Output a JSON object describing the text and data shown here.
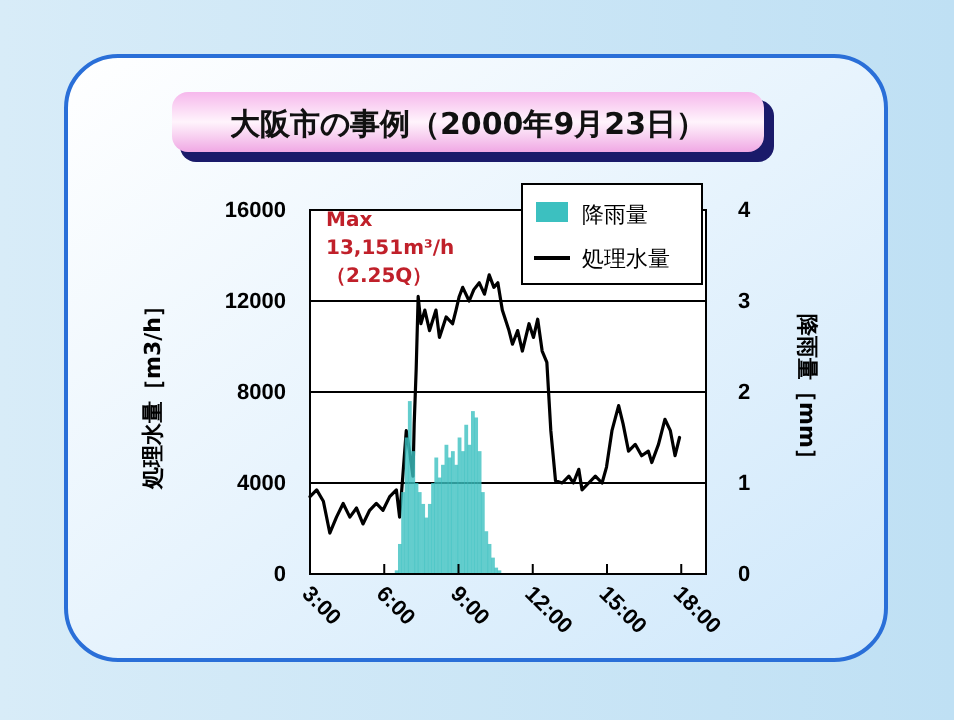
{
  "chart_data": {
    "type": "line",
    "title": "大阪市の事例（2000年9月23日）",
    "ylabel": "処理水量［m3/h］",
    "y2label": "降雨量［mm］",
    "annotations": [
      "Max 13,151m³/h（2.25Q）"
    ],
    "xlim": [
      3,
      19
    ],
    "xticks": [
      {
        "value": 3,
        "label": "3:00"
      },
      {
        "value": 6,
        "label": "6:00"
      },
      {
        "value": 9,
        "label": "9:00"
      },
      {
        "value": 12,
        "label": "12:00"
      },
      {
        "value": 15,
        "label": "15:00"
      },
      {
        "value": 18,
        "label": "18:00"
      }
    ],
    "ylim": [
      0,
      16000
    ],
    "yticks": [
      0,
      4000,
      8000,
      12000,
      16000
    ],
    "y2lim": [
      0,
      4
    ],
    "y2ticks": [
      0,
      1,
      2,
      3,
      4
    ],
    "grid": "y",
    "legend": "top right",
    "series": [
      {
        "name": "降雨量",
        "type": "bar",
        "axis": "y2",
        "color": "#3cc0c0",
        "x": [
          6.49,
          6.62,
          6.75,
          6.89,
          7.02,
          7.16,
          7.29,
          7.42,
          7.56,
          7.69,
          7.83,
          7.96,
          8.09,
          8.23,
          8.36,
          8.5,
          8.63,
          8.76,
          8.9,
          9.03,
          9.17,
          9.3,
          9.43,
          9.57,
          9.7,
          9.84,
          9.97,
          10.11,
          10.24,
          10.38,
          10.51,
          10.64
        ],
        "values": [
          0.04,
          0.33,
          0.9,
          1.5,
          1.9,
          1.35,
          1.0,
          0.9,
          0.77,
          0.62,
          0.77,
          1.0,
          1.28,
          1.06,
          1.2,
          1.42,
          1.28,
          1.35,
          1.2,
          1.5,
          1.35,
          1.64,
          1.42,
          1.79,
          1.72,
          1.35,
          0.9,
          0.47,
          0.33,
          0.18,
          0.07,
          0.04
        ]
      },
      {
        "name": "処理水量",
        "color": "#000000",
        "x": [
          3,
          3.27,
          3.54,
          3.8,
          4.07,
          4.34,
          4.61,
          4.88,
          5.14,
          5.41,
          5.68,
          5.95,
          6.22,
          6.49,
          6.62,
          6.75,
          6.89,
          7.02,
          7.16,
          7.21,
          7.29,
          7.37,
          7.48,
          7.64,
          7.83,
          8.09,
          8.23,
          8.5,
          8.76,
          8.9,
          9.03,
          9.17,
          9.43,
          9.62,
          9.84,
          10.05,
          10.24,
          10.43,
          10.59,
          10.77,
          11.04,
          11.18,
          11.39,
          11.58,
          11.85,
          12.03,
          12.2,
          12.38,
          12.57,
          12.73,
          12.92,
          13.19,
          13.46,
          13.64,
          13.86,
          13.99,
          14.26,
          14.53,
          14.8,
          14.98,
          15.2,
          15.47,
          15.65,
          15.87,
          16.14,
          16.4,
          16.67,
          16.81,
          17.08,
          17.34,
          17.56,
          17.75,
          17.93
        ],
        "values": [
          3400,
          3700,
          3200,
          1800,
          2500,
          3100,
          2500,
          2900,
          2200,
          2800,
          3100,
          2800,
          3400,
          3700,
          2500,
          4300,
          6300,
          5400,
          4300,
          6600,
          9000,
          12200,
          11000,
          11600,
          10700,
          11600,
          10400,
          11300,
          11000,
          11600,
          12200,
          12600,
          12000,
          12500,
          12800,
          12300,
          13151,
          12600,
          12800,
          11600,
          10700,
          10100,
          10700,
          9800,
          11000,
          10400,
          11200,
          9800,
          9300,
          6300,
          4100,
          4000,
          4300,
          4000,
          4600,
          3700,
          4000,
          4300,
          4000,
          4700,
          6300,
          7400,
          6600,
          5400,
          5700,
          5200,
          5400,
          4900,
          5700,
          6800,
          6300,
          5200,
          6000
        ]
      }
    ]
  }
}
